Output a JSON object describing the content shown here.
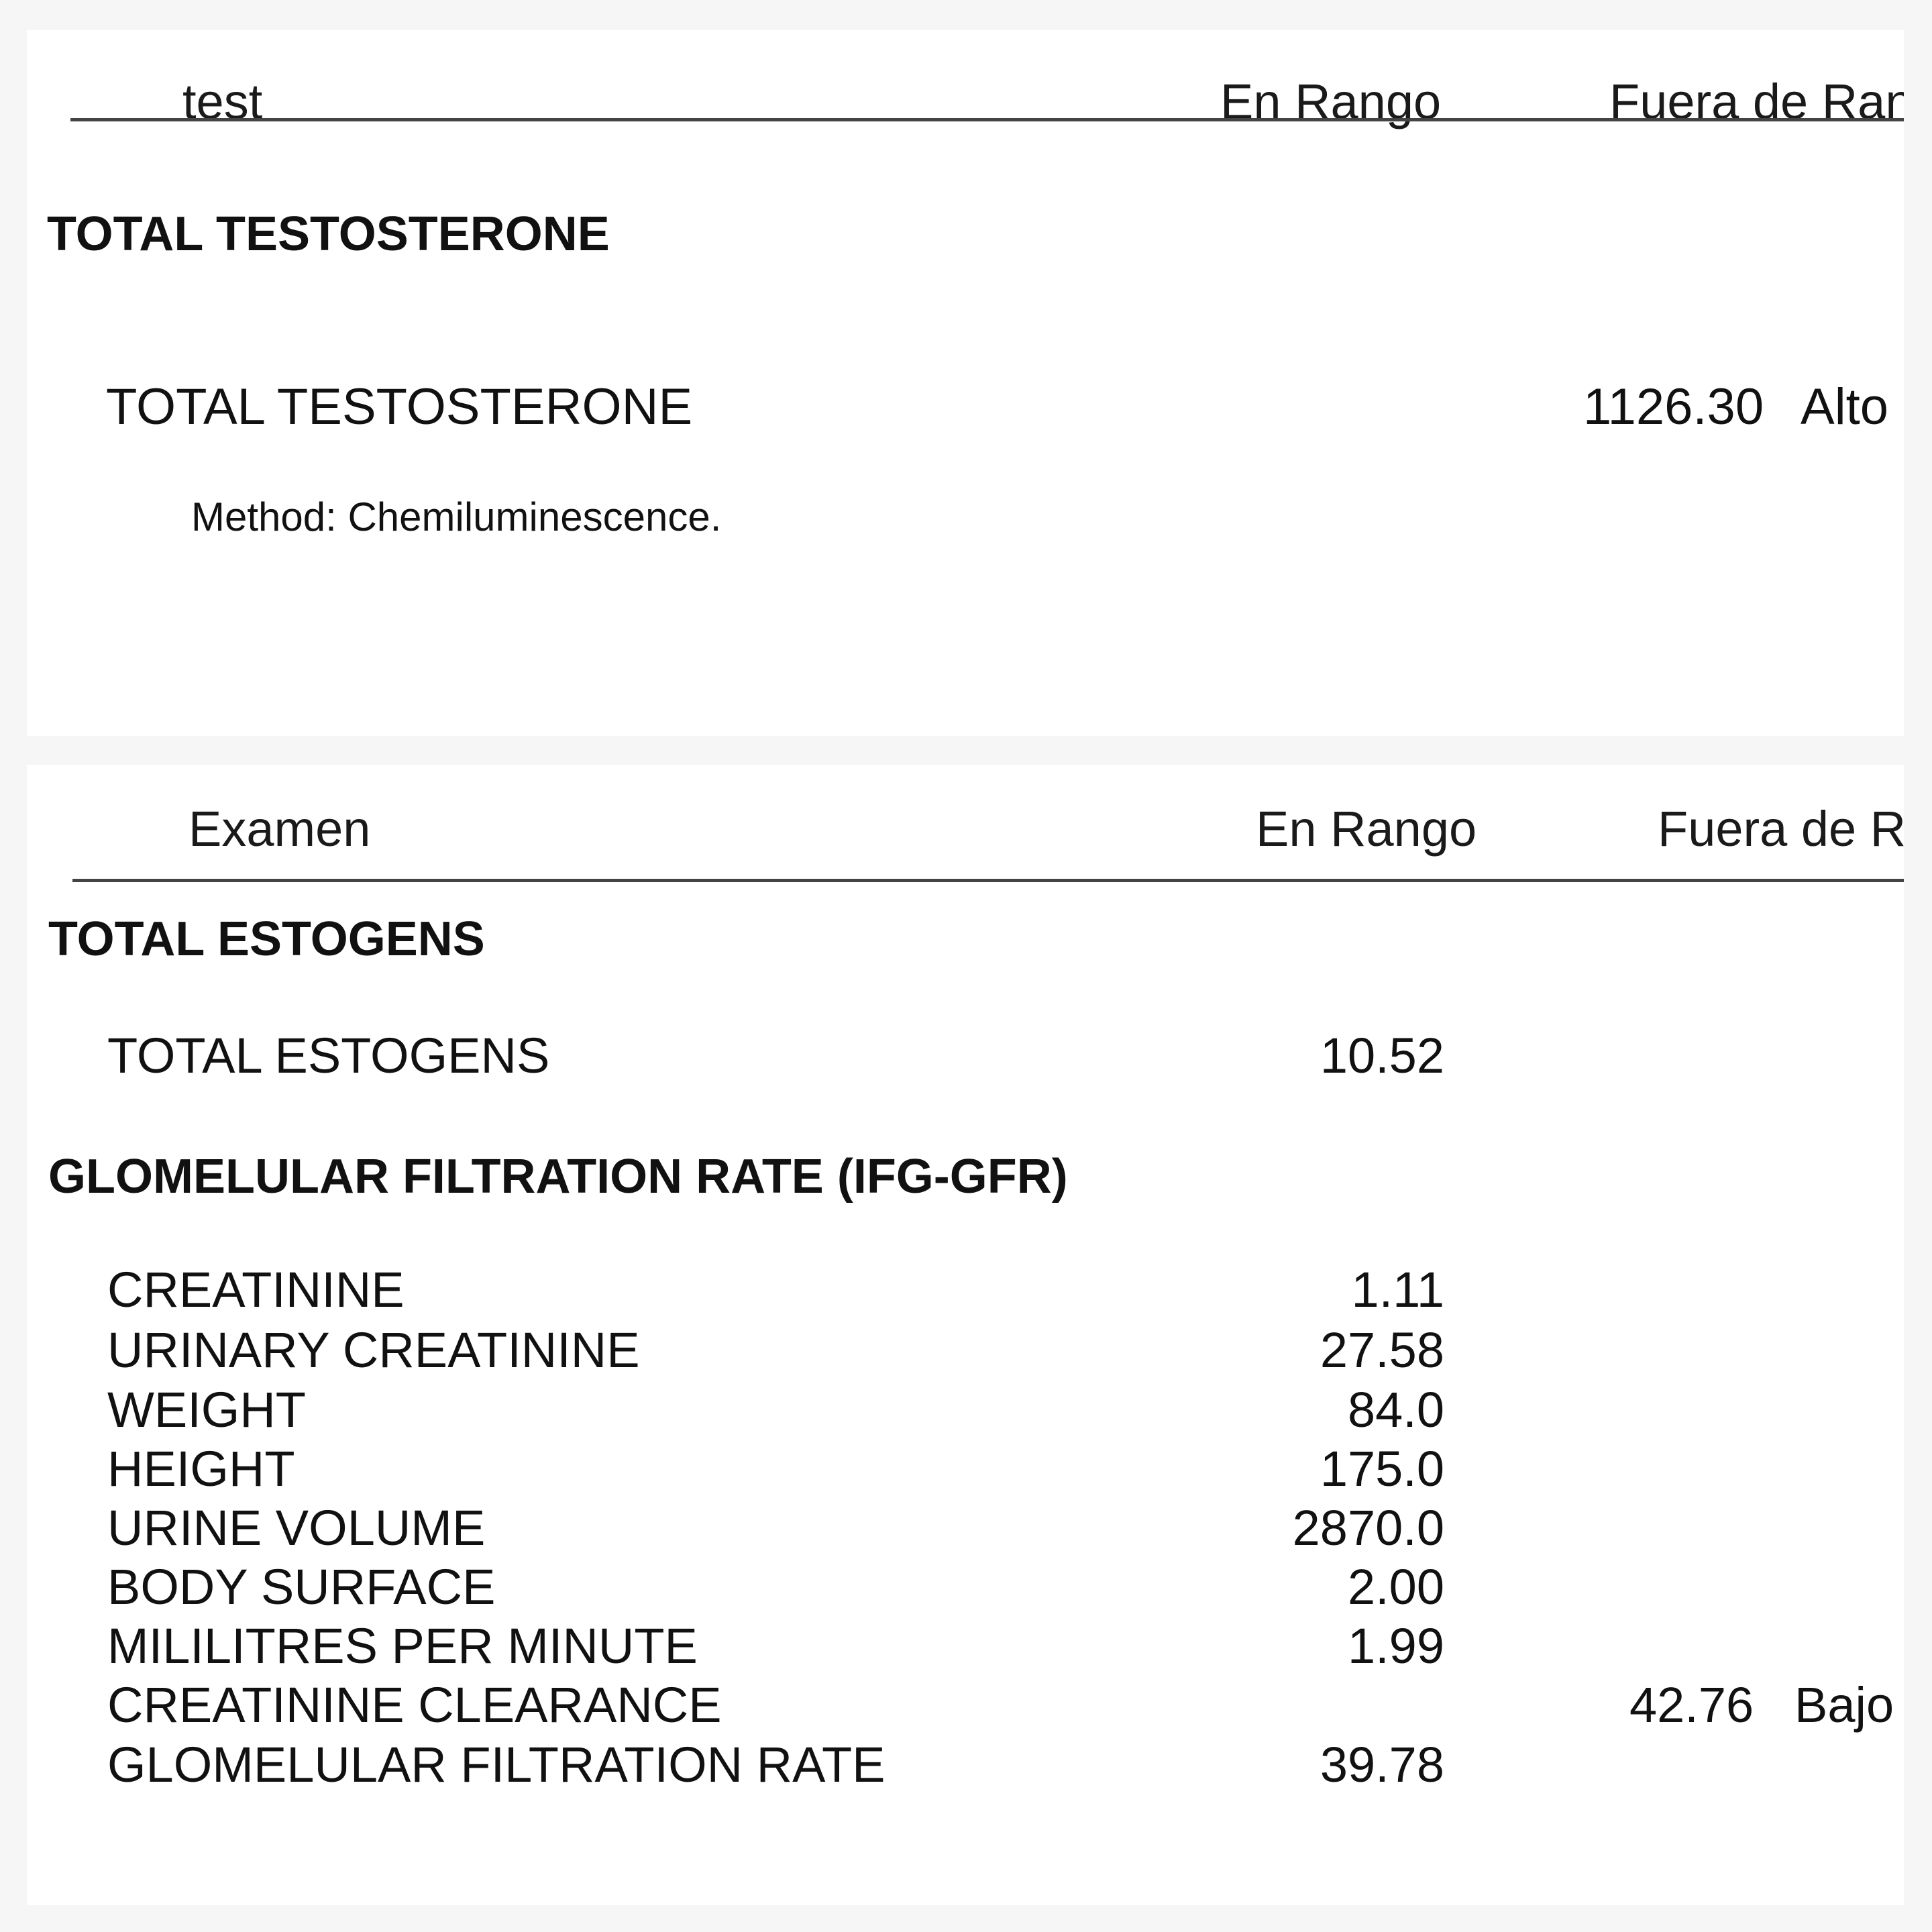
{
  "panel1": {
    "header": {
      "col_test": "test",
      "col_in_range": "En Rango",
      "col_out_range": "Fuera de Ran"
    },
    "section_title": "TOTAL TESTOSTERONE",
    "item": {
      "name": "TOTAL TESTOSTERONE",
      "out_value": "1126.30",
      "flag": "Alto"
    },
    "method": "Method: Chemiluminescence."
  },
  "panel2": {
    "header": {
      "col_test": "Examen",
      "col_in_range": "En Rango",
      "col_out_range": "Fuera de R"
    },
    "section1": {
      "title": "TOTAL ESTOGENS",
      "rows": [
        {
          "name": "TOTAL ESTOGENS",
          "value": "10.52"
        }
      ]
    },
    "section2": {
      "title": "GLOMELULAR FILTRATION RATE (IFG-GFR)",
      "rows": [
        {
          "name": "CREATININE",
          "value": "1.11"
        },
        {
          "name": "URINARY CREATININE",
          "value": "27.58"
        },
        {
          "name": "WEIGHT",
          "value": "84.0"
        },
        {
          "name": "HEIGHT",
          "value": "175.0"
        },
        {
          "name": "URINE VOLUME",
          "value": "2870.0"
        },
        {
          "name": "BODY SURFACE",
          "value": "2.00"
        },
        {
          "name": "MILILITRES PER MINUTE",
          "value": "1.99"
        },
        {
          "name": "CREATININE CLEARANCE",
          "out_value": "42.76",
          "flag": "Bajo"
        },
        {
          "name": "GLOMELULAR FILTRATION RATE",
          "value": "39.78"
        }
      ]
    }
  }
}
